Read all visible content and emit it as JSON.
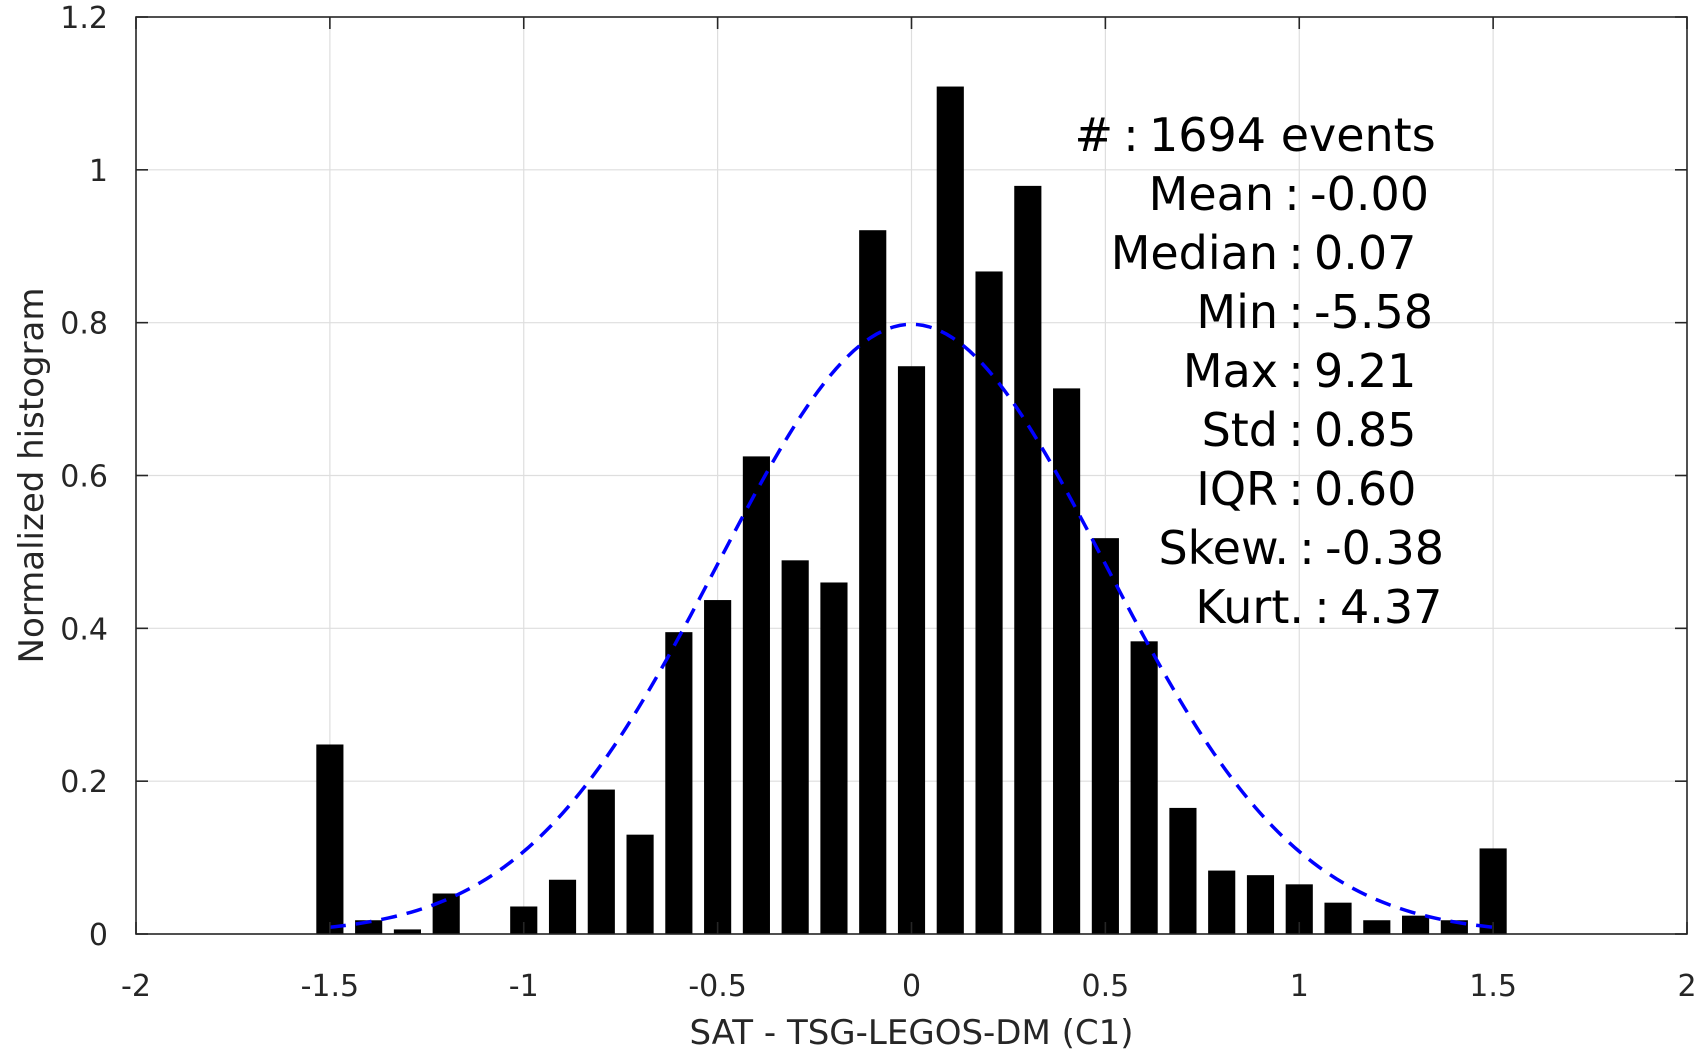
{
  "chart_data": {
    "type": "bar",
    "xlabel": "SAT - TSG-LEGOS-DM (C1)",
    "ylabel": "Normalized histogram",
    "xlim": [
      -2,
      2
    ],
    "ylim": [
      0,
      1.2
    ],
    "xticks": [
      -2,
      -1.5,
      -1,
      -0.5,
      0,
      0.5,
      1,
      1.5,
      2
    ],
    "xtick_labels": [
      "-2",
      "-1.5",
      "-1",
      "-0.5",
      "0",
      "0.5",
      "1",
      "1.5",
      "2"
    ],
    "yticks": [
      0,
      0.2,
      0.4,
      0.6,
      0.8,
      1,
      1.2
    ],
    "ytick_labels": [
      "0",
      "0.2",
      "0.4",
      "0.6",
      "0.8",
      "1",
      "1.2"
    ],
    "grid": true,
    "bar_color": "#000000",
    "curve_color": "#0000ff",
    "bars": {
      "x": [
        -1.5,
        -1.4,
        -1.3,
        -1.2,
        -1.1,
        -1.0,
        -0.9,
        -0.8,
        -0.7,
        -0.6,
        -0.5,
        -0.4,
        -0.3,
        -0.2,
        -0.1,
        0.0,
        0.1,
        0.2,
        0.3,
        0.4,
        0.5,
        0.6,
        0.7,
        0.8,
        0.9,
        1.0,
        1.1,
        1.2,
        1.3,
        1.4,
        1.5
      ],
      "values": [
        0.248,
        0.018,
        0.006,
        0.053,
        0,
        0.036,
        0.071,
        0.189,
        0.13,
        0.395,
        0.437,
        0.625,
        0.489,
        0.46,
        0.921,
        0.743,
        1.109,
        0.867,
        0.979,
        0.714,
        0.518,
        0.383,
        0.165,
        0.083,
        0.077,
        0.065,
        0.041,
        0.018,
        0.024,
        0.018,
        0.112
      ],
      "width": 0.07
    },
    "fit_curve": {
      "type": "normal",
      "mean": 0,
      "std": 0.5,
      "range": [
        -1.5,
        1.5
      ],
      "style": "dashed"
    },
    "stats": [
      {
        "label": "#",
        "sep": ":",
        "value": "1694 events"
      },
      {
        "label": "Mean",
        "sep": ":",
        "value": "-0.00"
      },
      {
        "label": "Median",
        "sep": ":",
        "value": "0.07"
      },
      {
        "label": "Min",
        "sep": ":",
        "value": "-5.58"
      },
      {
        "label": "Max",
        "sep": ":",
        "value": "9.21"
      },
      {
        "label": "Std",
        "sep": ":",
        "value": "0.85"
      },
      {
        "label": "IQR",
        "sep": ":",
        "value": "0.60"
      },
      {
        "label": "Skew.",
        "sep": ":",
        "value": "-0.38"
      },
      {
        "label": "Kurt.",
        "sep": ":",
        "value": "4.37"
      }
    ]
  }
}
